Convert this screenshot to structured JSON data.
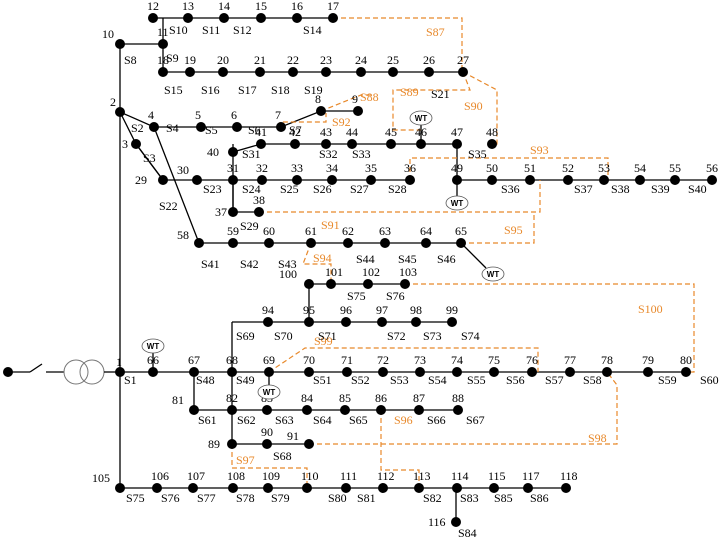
{
  "diagram": {
    "nodes": [
      "1",
      "2",
      "3",
      "4",
      "5",
      "6",
      "7",
      "8",
      "9",
      "10",
      "11",
      "12",
      "13",
      "14",
      "15",
      "16",
      "17",
      "18",
      "19",
      "20",
      "21",
      "22",
      "23",
      "24",
      "25",
      "26",
      "27",
      "29",
      "30",
      "31",
      "32",
      "33",
      "34",
      "35",
      "36",
      "37",
      "38",
      "40",
      "41",
      "42",
      "43",
      "44",
      "45",
      "46",
      "47",
      "48",
      "49",
      "50",
      "51",
      "52",
      "53",
      "54",
      "55",
      "56",
      "58",
      "59",
      "60",
      "61",
      "62",
      "63",
      "64",
      "65",
      "66",
      "67",
      "68",
      "69",
      "70",
      "71",
      "72",
      "73",
      "74",
      "75",
      "76",
      "77",
      "78",
      "79",
      "80",
      "81",
      "82",
      "83",
      "84",
      "85",
      "86",
      "87",
      "88",
      "89",
      "90",
      "91",
      "94",
      "95",
      "96",
      "97",
      "98",
      "99",
      "100",
      "101",
      "102",
      "103",
      "105",
      "106",
      "107",
      "108",
      "109",
      "110",
      "111",
      "112",
      "113",
      "114",
      "115",
      "116",
      "117",
      "118"
    ],
    "sections": [
      "S1",
      "S2",
      "S3",
      "S4",
      "S5",
      "S6",
      "S7",
      "S8",
      "S9",
      "S10",
      "S11",
      "S12",
      "S14",
      "S15",
      "S16",
      "S17",
      "S18",
      "S19",
      "S21",
      "S22",
      "S23",
      "S24",
      "S25",
      "S26",
      "S27",
      "S28",
      "S29",
      "S31",
      "S32",
      "S33",
      "S35",
      "S36",
      "S37",
      "S38",
      "S39",
      "S40",
      "S41",
      "S42",
      "S43",
      "S44",
      "S45",
      "S46",
      "S48",
      "S49",
      "S51",
      "S52",
      "S53",
      "S54",
      "S55",
      "S56",
      "S57",
      "S58",
      "S59",
      "S60",
      "S61",
      "S62",
      "S63",
      "S64",
      "S65",
      "S66",
      "S67",
      "S68",
      "S69",
      "S70",
      "S71",
      "S72",
      "S73",
      "S74",
      "S75",
      "S76",
      "S77",
      "S78",
      "S79",
      "S80",
      "S81",
      "S82",
      "S83",
      "S84",
      "S85",
      "S86"
    ],
    "tie_switches": [
      "S87",
      "S88",
      "S89",
      "S90",
      "S91",
      "S92",
      "S93",
      "S94",
      "S95",
      "S96",
      "S97",
      "S98",
      "S99",
      "S100"
    ],
    "wt_label": "WT",
    "colors": {
      "line": "#000000",
      "tie": "#E8892B",
      "node": "#000000"
    }
  }
}
